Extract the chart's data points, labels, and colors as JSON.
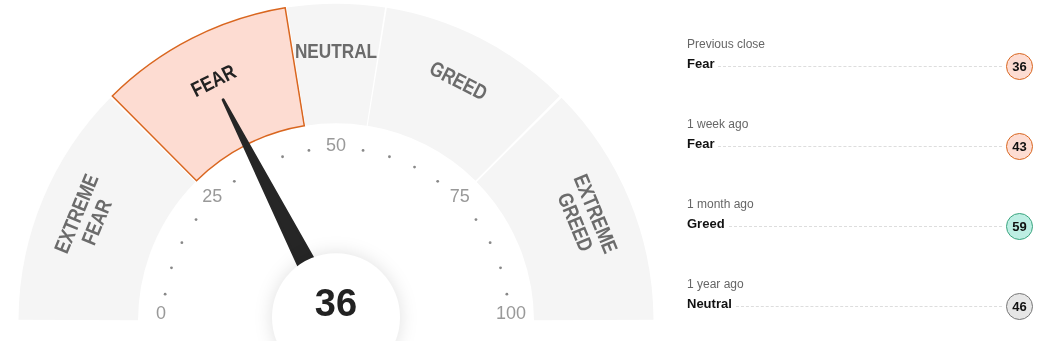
{
  "chart_data": {
    "type": "donut",
    "categories": [
      "EXTREME FEAR",
      "FEAR",
      "NEUTRAL",
      "GREED",
      "EXTREME GREED"
    ],
    "values": [
      25,
      20,
      10,
      20,
      25
    ],
    "colors": [
      "#f5f5f5",
      "#fddcd2",
      "#f5f5f5",
      "#f5f5f5",
      "#f5f5f5"
    ],
    "needle": "FEAR",
    "legend": false,
    "annotations": [
      "36",
      "0",
      "25",
      "50",
      "75",
      "100",
      "Previous close",
      "Fear",
      "36",
      "1 week ago",
      "Fear",
      "43",
      "1 month ago",
      "Greed",
      "59",
      "1 year ago",
      "Neutral",
      "46"
    ]
  }
}
